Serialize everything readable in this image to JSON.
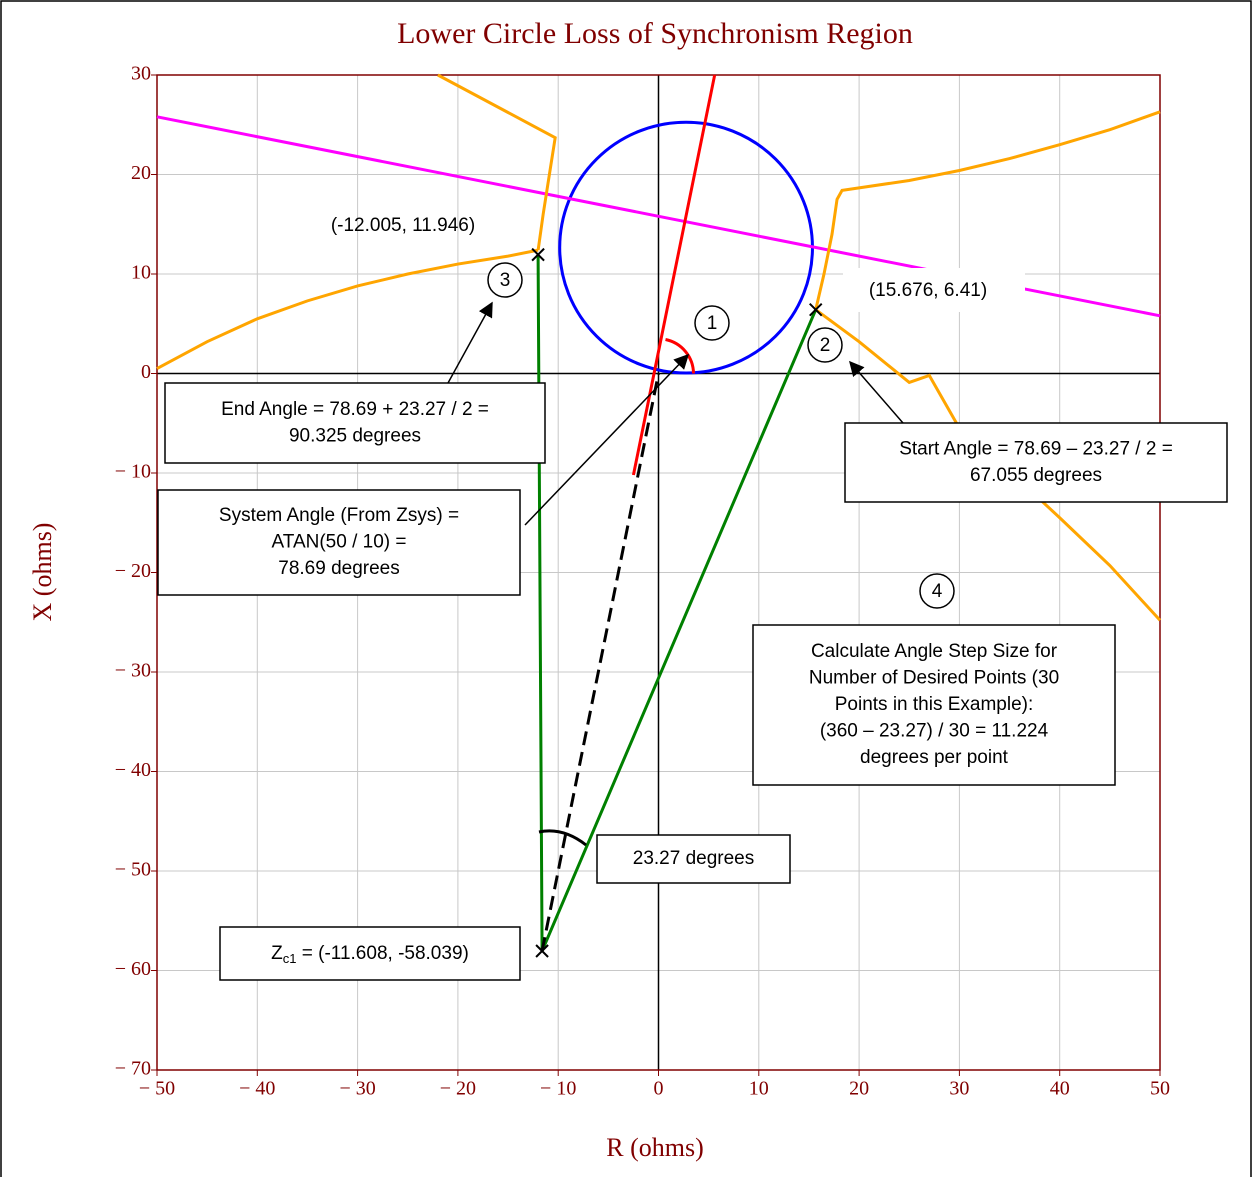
{
  "chart_data": {
    "type": "line",
    "title": "Lower Circle Loss of Synchronism Region",
    "x_label": "R (ohms)",
    "y_label": "X (ohms)",
    "xlim": [
      -50,
      50
    ],
    "ylim": [
      -70,
      30
    ],
    "xticks": [
      {
        "value": -50,
        "label": "− 50"
      },
      {
        "value": -40,
        "label": "− 40"
      },
      {
        "value": -30,
        "label": "− 30"
      },
      {
        "value": -20,
        "label": "− 20"
      },
      {
        "value": -10,
        "label": "− 10"
      },
      0,
      10,
      20,
      30,
      40,
      50
    ],
    "yticks": [
      30,
      20,
      10,
      0,
      {
        "value": -10,
        "label": "− 10"
      },
      {
        "value": -20,
        "label": "− 20"
      },
      {
        "value": -30,
        "label": "− 30"
      },
      {
        "value": -40,
        "label": "− 40"
      },
      {
        "value": -50,
        "label": "− 50"
      },
      {
        "value": -60,
        "label": "− 60"
      },
      {
        "value": -70,
        "label": "− 70"
      }
    ],
    "grid": true,
    "circle": {
      "color": "#0000ff",
      "cx": 2.75,
      "cy": 12.65,
      "r": 12.6
    },
    "series": [
      {
        "color": "#ff00ff",
        "x": [
          -50,
          50
        ],
        "values": [
          25.8,
          5.8
        ]
      },
      {
        "color": "#ffa500",
        "x": [
          -22,
          -10.3,
          -10.8,
          -11.5,
          -12.0
        ],
        "values": [
          30,
          23.7,
          20.5,
          16,
          12.4
        ]
      },
      {
        "color": "#ffa500",
        "x": [
          -50,
          -45,
          -40,
          -35,
          -30,
          -25,
          -20,
          -15,
          -12.0
        ],
        "values": [
          0.5,
          3.2,
          5.5,
          7.3,
          8.8,
          10.0,
          11.0,
          11.8,
          12.4
        ]
      },
      {
        "color": "#ffa500",
        "x": [
          15.676,
          16.5,
          17.3,
          17.8,
          18.3,
          25,
          30,
          35,
          40,
          45,
          50
        ],
        "values": [
          6.41,
          10,
          14,
          17.5,
          18.4,
          19.4,
          20.4,
          21.6,
          23.0,
          24.5,
          26.3
        ]
      },
      {
        "color": "#ffa500",
        "x": [
          15.676,
          20,
          25,
          27,
          30,
          35,
          40,
          45,
          50
        ],
        "values": [
          6.41,
          3.2,
          -0.9,
          -0.2,
          -5.5,
          -9.8,
          -14.5,
          -19.3,
          -24.8
        ]
      },
      {
        "color": "#ff0000",
        "x": [
          -2.5,
          5.6
        ],
        "values": [
          -10.2,
          30
        ]
      },
      {
        "color": "#008000",
        "x": [
          -12.005,
          -11.608,
          15.676
        ],
        "values": [
          11.946,
          -58.039,
          6.41
        ]
      },
      {
        "color": "#000000",
        "dashed": true,
        "x": [
          -11.608,
          0
        ],
        "values": [
          -58.039,
          0
        ]
      }
    ],
    "points": [
      {
        "x": -12.005,
        "y": 11.946,
        "label": "(-12.005, 11.946)"
      },
      {
        "x": 15.676,
        "y": 6.41,
        "label": "(15.676, 6.41)"
      },
      {
        "x": -11.608,
        "y": -58.039,
        "label_main": "Z",
        "label_sub": "c1",
        "label_rest": " = (-11.608, -58.039)"
      }
    ],
    "boxes": [
      {
        "lines": [
          "End Angle = 78.69 + 23.27 / 2 =",
          "90.325 degrees"
        ]
      },
      {
        "lines": [
          "Start Angle = 78.69 – 23.27 / 2 =",
          "67.055 degrees"
        ]
      },
      {
        "lines": [
          "System Angle (From Zsys) =",
          "ATAN(50 / 10) =",
          "78.69 degrees"
        ]
      },
      {
        "lines": [
          "Calculate Angle Step Size for",
          "Number of Desired Points (30",
          "Points in this Example):",
          "(360 – 23.27) / 30 = 11.224",
          "degrees per point"
        ]
      },
      {
        "lines": [
          "23.27 degrees"
        ]
      }
    ],
    "markers": [
      "1",
      "2",
      "3",
      "4"
    ]
  }
}
